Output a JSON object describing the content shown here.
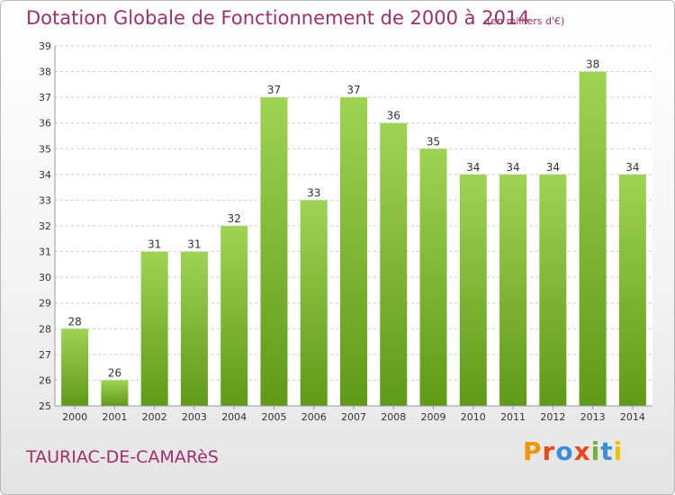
{
  "header": {
    "title": "Dotation Globale de Fonctionnement de 2000 à 2014",
    "unit": "(en milliers d'€)"
  },
  "footer": {
    "commune": "TAURIAC-DE-CAMARèS",
    "logo_text": "Proxiti"
  },
  "colors": {
    "bar_top": "#9fd354",
    "bar_bottom": "#5f9a16",
    "title": "#a0306a",
    "grid": "#cccccc"
  },
  "chart_data": {
    "type": "bar",
    "title": "Dotation Globale de Fonctionnement de 2000 à 2014",
    "subtitle": "(en milliers d'€)",
    "xlabel": "",
    "ylabel": "",
    "categories": [
      "2000",
      "2001",
      "2002",
      "2003",
      "2004",
      "2005",
      "2006",
      "2007",
      "2008",
      "2009",
      "2010",
      "2011",
      "2012",
      "2013",
      "2014"
    ],
    "values": [
      28,
      26,
      31,
      31,
      32,
      37,
      33,
      37,
      36,
      35,
      34,
      34,
      34,
      38,
      34
    ],
    "ylim": [
      25,
      39
    ],
    "yticks": [
      25,
      26,
      27,
      28,
      29,
      30,
      31,
      32,
      33,
      34,
      35,
      36,
      37,
      38,
      39
    ],
    "grid": true,
    "data_labels": true,
    "legend": "none"
  }
}
